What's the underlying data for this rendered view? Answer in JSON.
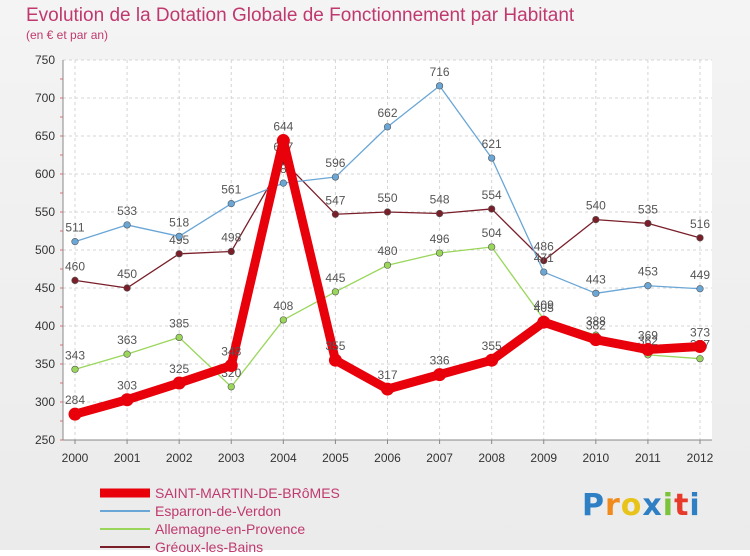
{
  "chart_data": {
    "type": "line",
    "title": "Evolution de la Dotation Globale de Fonctionnement par Habitant",
    "subtitle": "(en € et par an)",
    "xlabel": "",
    "ylabel": "",
    "ylim": [
      250,
      750
    ],
    "yticks": [
      "250",
      "300",
      "350",
      "400",
      "450",
      "500",
      "550",
      "600",
      "650",
      "700",
      "750"
    ],
    "categories": [
      "2000",
      "2001",
      "2002",
      "2003",
      "2004",
      "2005",
      "2006",
      "2007",
      "2008",
      "2009",
      "2010",
      "2011",
      "2012"
    ],
    "legend_position": "bottom-left",
    "series": [
      {
        "name": "Gréoux-les-Bains",
        "color": "#7a1f2a",
        "values": [
          460,
          450,
          495,
          498,
          617,
          547,
          550,
          548,
          554,
          486,
          540,
          535,
          516
        ],
        "labels": [
          "460",
          "450",
          "495",
          "498",
          "617",
          "547",
          "550",
          "548",
          "554",
          "486",
          "540",
          "535",
          "516"
        ]
      },
      {
        "name": "Allemagne-en-Provence",
        "color": "#99d65a",
        "values": [
          343,
          363,
          385,
          320,
          408,
          445,
          480,
          496,
          504,
          409,
          388,
          362,
          357
        ],
        "labels": [
          "343",
          "363",
          "385",
          "320",
          "408",
          "445",
          "480",
          "496",
          "504",
          "409",
          "388",
          "362",
          "357"
        ]
      },
      {
        "name": "Esparron-de-Verdon",
        "color": "#6aa6d6",
        "values": [
          511,
          533,
          518,
          561,
          588,
          596,
          662,
          716,
          621,
          471,
          443,
          453,
          449
        ],
        "labels": [
          "511",
          "533",
          "518",
          "561",
          "588",
          "596",
          "662",
          "716",
          "621",
          "471",
          "443",
          "453",
          "449"
        ]
      },
      {
        "name": "SAINT-MARTIN-DE-BRôMES",
        "color": "#e8000b",
        "values": [
          284,
          303,
          325,
          348,
          644,
          355,
          317,
          336,
          355,
          405,
          382,
          369,
          373
        ],
        "labels": [
          "284",
          "303",
          "325",
          "348",
          "644",
          "355",
          "317",
          "336",
          "355",
          "405",
          "382",
          "369",
          "373"
        ]
      }
    ]
  },
  "legend": {
    "items": [
      {
        "label": "SAINT-MARTIN-DE-BRôMES",
        "color": "#e8000b",
        "text_color": "#c0396e"
      },
      {
        "label": "Esparron-de-Verdon",
        "color": "#6aa6d6",
        "text_color": "#c0396e"
      },
      {
        "label": "Allemagne-en-Provence",
        "color": "#99d65a",
        "text_color": "#c0396e"
      },
      {
        "label": "Gréoux-les-Bains",
        "color": "#7a1f2a",
        "text_color": "#c0396e"
      }
    ]
  },
  "logo": {
    "letters": [
      "P",
      "r",
      "o",
      "x",
      "i",
      "t",
      "i"
    ],
    "colors": [
      "#2e7fc4",
      "#f08a1c",
      "#e8c41a",
      "#2e7fc4",
      "#7cc23a",
      "#e83a2a",
      "#2e7fc4"
    ]
  }
}
